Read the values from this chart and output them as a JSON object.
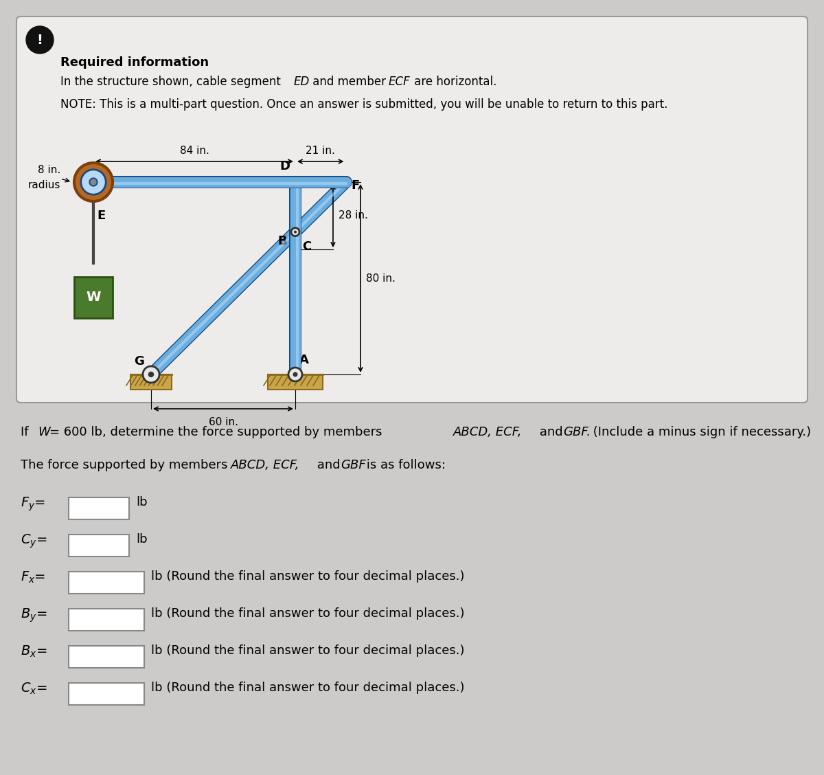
{
  "bg_color": "#cccbca",
  "card_bg": "#eeecea",
  "title_text": "Required information",
  "line2": "NOTE: This is a multi-part question. Once an answer is submitted, you will be unable to return to this part.",
  "dim_84": "84 in.",
  "dim_21": "21 in.",
  "dim_8": "8 in.",
  "dim_radius": "radius",
  "dim_28": "28 in.",
  "dim_80": "80 in.",
  "dim_60": "60 in.",
  "node_D": "D",
  "node_E": "E",
  "node_F": "F",
  "node_C": "C",
  "node_B": "B",
  "node_G": "G",
  "node_A": "A",
  "node_W": "W",
  "exclaim_bg": "#111111",
  "exclaim_fg": "#ffffff",
  "steel_blue": "#6aaee0",
  "steel_mid": "#4488cc",
  "steel_dark": "#1a4a80",
  "steel_highlight": "#b8d8f8",
  "pulley_brown": "#b86820",
  "pulley_rim": "#7a4010",
  "green_box": "#4a7a2c",
  "ground_tan": "#c8a44a",
  "ground_dark": "#8b6a18",
  "pin_fill": "#e8e8e8",
  "pin_dark": "#333333"
}
